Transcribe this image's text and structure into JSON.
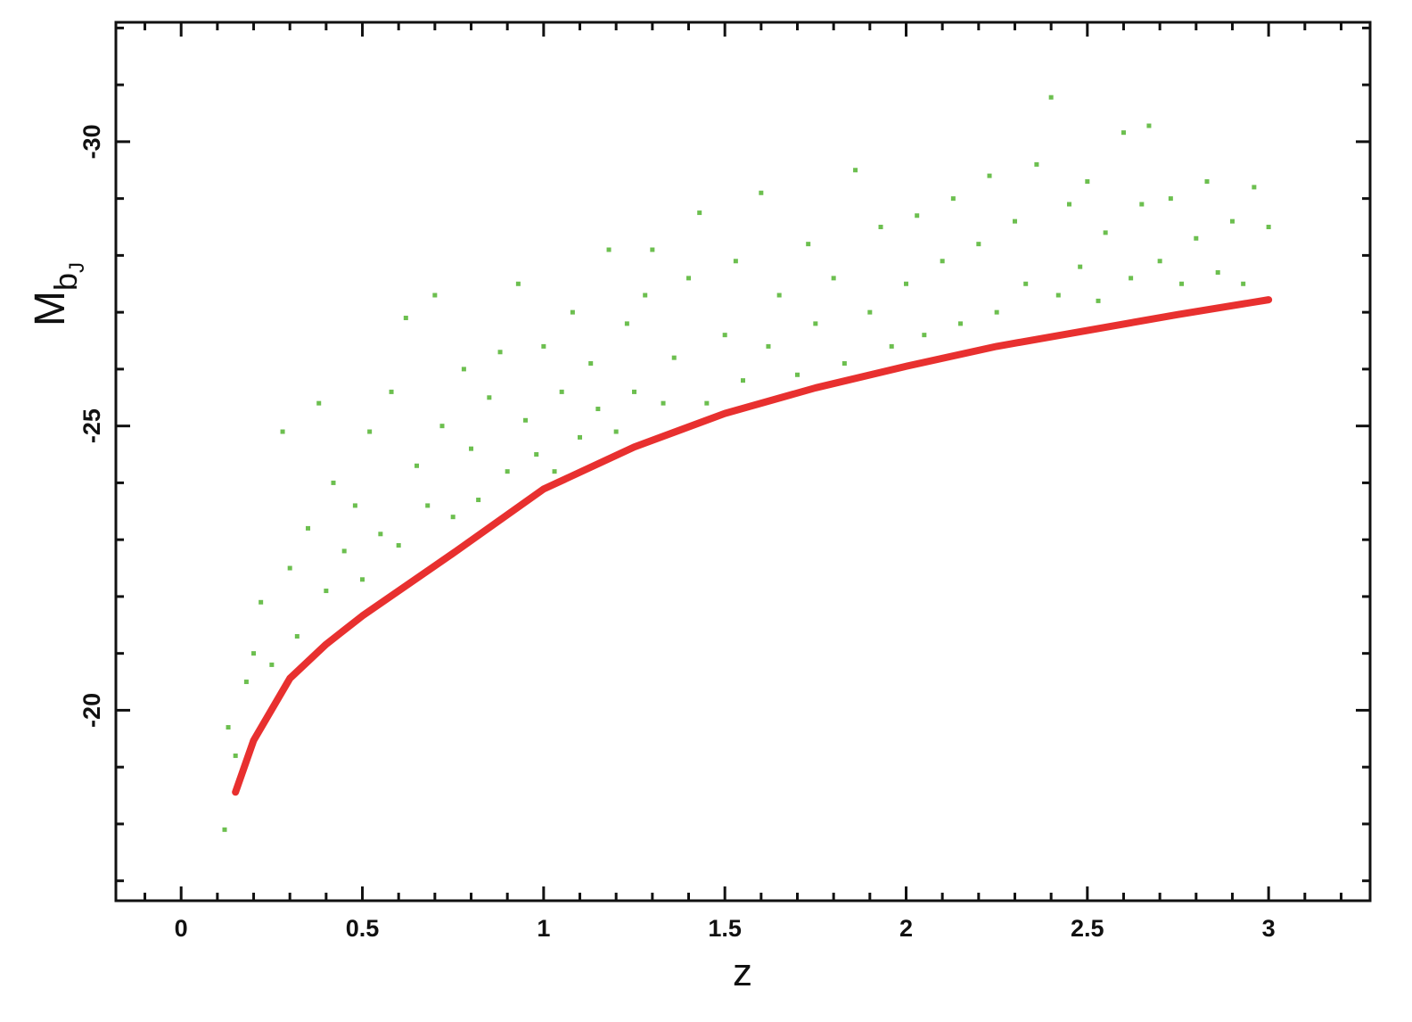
{
  "chart_data": {
    "type": "scatter",
    "xlabel": "z",
    "ylabel": {
      "main": "M",
      "sub": "b",
      "subsub": "J"
    },
    "xlim": [
      -0.18,
      3.28
    ],
    "ylim": [
      -16.65,
      -32.1
    ],
    "xticks": [
      0,
      0.5,
      1,
      1.5,
      2,
      2.5,
      3
    ],
    "yticks": [
      -20,
      -25,
      -30
    ],
    "xminorticks": [
      -0.1,
      0.1,
      0.2,
      0.3,
      0.4,
      0.6,
      0.7,
      0.8,
      0.9,
      1.1,
      1.2,
      1.3,
      1.4,
      1.6,
      1.7,
      1.8,
      1.9,
      2.1,
      2.2,
      2.3,
      2.4,
      2.6,
      2.7,
      2.8,
      2.9,
      3.1,
      3.2
    ],
    "yminorticks": [
      -17,
      -18,
      -19,
      -21,
      -22,
      -23,
      -24,
      -26,
      -27,
      -28,
      -29,
      -31,
      -32
    ],
    "series": [
      {
        "type": "scatter",
        "color": "#6cbf4f",
        "x": [
          0.12,
          0.13,
          0.15,
          0.18,
          0.2,
          0.22,
          0.25,
          0.28,
          0.3,
          0.32,
          0.35,
          0.38,
          0.4,
          0.42,
          0.45,
          0.48,
          0.5,
          0.52,
          0.55,
          0.58,
          0.6,
          0.62,
          0.65,
          0.68,
          0.7,
          0.72,
          0.75,
          0.78,
          0.8,
          0.82,
          0.85,
          0.88,
          0.9,
          0.93,
          0.95,
          0.98,
          1.0,
          1.03,
          1.05,
          1.08,
          1.1,
          1.13,
          1.15,
          1.18,
          1.2,
          1.23,
          1.25,
          1.28,
          1.3,
          1.33,
          1.36,
          1.4,
          1.43,
          1.45,
          1.5,
          1.53,
          1.55,
          1.6,
          1.62,
          1.65,
          1.7,
          1.73,
          1.75,
          1.8,
          1.83,
          1.86,
          1.9,
          1.93,
          1.96,
          2.0,
          2.03,
          2.05,
          2.1,
          2.13,
          2.15,
          2.2,
          2.23,
          2.25,
          2.3,
          2.33,
          2.36,
          2.4,
          2.42,
          2.45,
          2.48,
          2.5,
          2.53,
          2.55,
          2.6,
          2.62,
          2.65,
          2.67,
          2.7,
          2.73,
          2.76,
          2.8,
          2.83,
          2.86,
          2.9,
          2.93,
          2.96,
          3.0
        ],
        "y": [
          -17.9,
          -19.7,
          -19.2,
          -20.5,
          -21.0,
          -21.9,
          -20.8,
          -24.9,
          -22.5,
          -21.3,
          -23.2,
          -25.4,
          -22.1,
          -24.0,
          -22.8,
          -23.6,
          -22.3,
          -24.9,
          -23.1,
          -25.6,
          -22.9,
          -26.9,
          -24.3,
          -23.6,
          -27.3,
          -25.0,
          -23.4,
          -26.0,
          -24.6,
          -23.7,
          -25.5,
          -26.3,
          -24.2,
          -27.5,
          -25.1,
          -24.5,
          -26.4,
          -24.2,
          -25.6,
          -27.0,
          -24.8,
          -26.1,
          -25.3,
          -28.1,
          -24.9,
          -26.8,
          -25.6,
          -27.3,
          -28.1,
          -25.4,
          -26.2,
          -27.6,
          -28.75,
          -25.4,
          -26.6,
          -27.9,
          -25.8,
          -29.1,
          -26.4,
          -27.3,
          -25.9,
          -28.2,
          -26.8,
          -27.6,
          -26.1,
          -29.5,
          -27.0,
          -28.5,
          -26.4,
          -27.5,
          -28.7,
          -26.6,
          -27.9,
          -29.0,
          -26.8,
          -28.2,
          -29.4,
          -27.0,
          -28.6,
          -27.5,
          -29.6,
          -30.78,
          -27.3,
          -28.9,
          -27.8,
          -29.3,
          -27.2,
          -28.4,
          -30.16,
          -27.6,
          -28.9,
          -30.28,
          -27.9,
          -29.0,
          -27.5,
          -28.3,
          -29.3,
          -27.7,
          -28.6,
          -27.5,
          -29.2,
          -28.5
        ]
      },
      {
        "type": "line",
        "color": "#e8302f",
        "x": [
          0.15,
          0.2,
          0.3,
          0.4,
          0.5,
          0.75,
          1.0,
          1.25,
          1.5,
          1.75,
          2.0,
          2.25,
          2.5,
          2.75,
          3.0
        ],
        "y": [
          -18.56,
          -19.47,
          -20.56,
          -21.16,
          -21.66,
          -22.76,
          -23.89,
          -24.63,
          -25.22,
          -25.67,
          -26.05,
          -26.4,
          -26.68,
          -26.96,
          -27.22
        ]
      }
    ]
  }
}
